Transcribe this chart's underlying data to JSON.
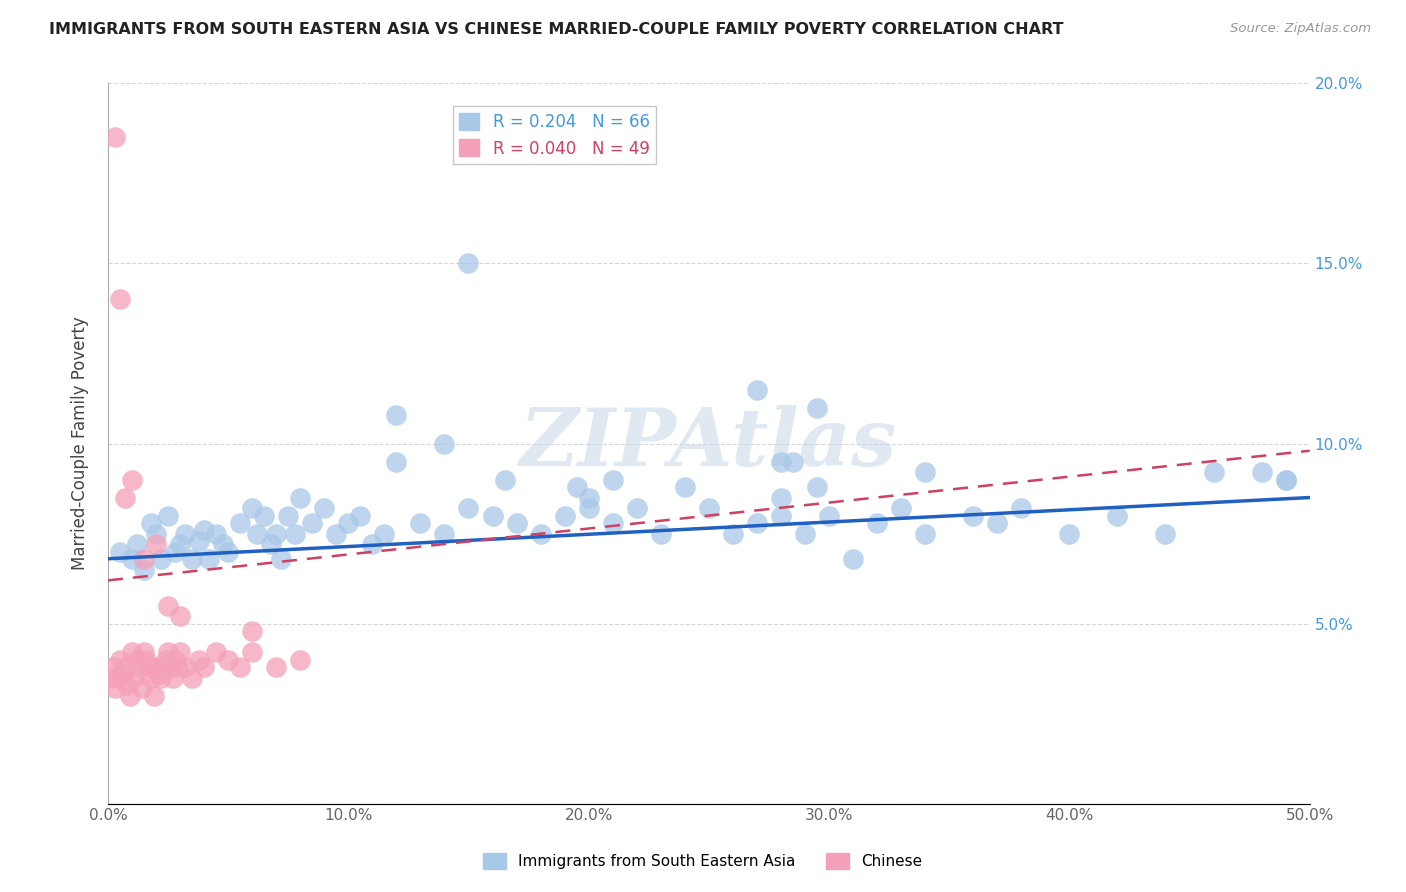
{
  "title": "IMMIGRANTS FROM SOUTH EASTERN ASIA VS CHINESE MARRIED-COUPLE FAMILY POVERTY CORRELATION CHART",
  "source": "Source: ZipAtlas.com",
  "ylabel": "Married-Couple Family Poverty",
  "xlim": [
    0,
    0.5
  ],
  "ylim": [
    0,
    0.2
  ],
  "xticks": [
    0.0,
    0.1,
    0.2,
    0.3,
    0.4,
    0.5
  ],
  "yticks": [
    0.0,
    0.05,
    0.1,
    0.15,
    0.2
  ],
  "xticklabels": [
    "0.0%",
    "10.0%",
    "20.0%",
    "30.0%",
    "40.0%",
    "50.0%"
  ],
  "yticklabels_right": [
    "",
    "5.0%",
    "10.0%",
    "15.0%",
    "20.0%"
  ],
  "blue_color": "#A8C8E8",
  "pink_color": "#F4A0B8",
  "blue_line_color": "#2060C0",
  "pink_line_color": "#D04060",
  "blue_R": 0.204,
  "blue_N": 66,
  "pink_R": 0.04,
  "pink_N": 49,
  "legend_label_blue": "Immigrants from South Eastern Asia",
  "legend_label_pink": "Chinese",
  "watermark": "ZIPAtlas",
  "blue_scatter_x": [
    0.005,
    0.01,
    0.012,
    0.015,
    0.018,
    0.02,
    0.022,
    0.025,
    0.028,
    0.03,
    0.032,
    0.035,
    0.038,
    0.04,
    0.042,
    0.045,
    0.048,
    0.05,
    0.055,
    0.06,
    0.062,
    0.065,
    0.068,
    0.07,
    0.072,
    0.075,
    0.078,
    0.08,
    0.085,
    0.09,
    0.095,
    0.1,
    0.105,
    0.11,
    0.115,
    0.12,
    0.13,
    0.14,
    0.15,
    0.16,
    0.17,
    0.18,
    0.19,
    0.2,
    0.21,
    0.22,
    0.23,
    0.24,
    0.25,
    0.26,
    0.27,
    0.28,
    0.29,
    0.3,
    0.31,
    0.32,
    0.33,
    0.34,
    0.36,
    0.37,
    0.38,
    0.4,
    0.42,
    0.44,
    0.46,
    0.49
  ],
  "blue_scatter_y": [
    0.07,
    0.068,
    0.072,
    0.065,
    0.078,
    0.075,
    0.068,
    0.08,
    0.07,
    0.072,
    0.075,
    0.068,
    0.073,
    0.076,
    0.068,
    0.075,
    0.072,
    0.07,
    0.078,
    0.082,
    0.075,
    0.08,
    0.072,
    0.075,
    0.068,
    0.08,
    0.075,
    0.085,
    0.078,
    0.082,
    0.075,
    0.078,
    0.08,
    0.072,
    0.075,
    0.095,
    0.078,
    0.075,
    0.082,
    0.08,
    0.078,
    0.075,
    0.08,
    0.085,
    0.078,
    0.082,
    0.075,
    0.088,
    0.082,
    0.075,
    0.078,
    0.08,
    0.075,
    0.08,
    0.068,
    0.078,
    0.082,
    0.075,
    0.08,
    0.078,
    0.082,
    0.075,
    0.08,
    0.075,
    0.092,
    0.09
  ],
  "blue_extra_x": [
    0.27,
    0.285,
    0.295,
    0.15,
    0.48,
    0.49,
    0.34,
    0.28,
    0.295,
    0.21,
    0.14,
    0.28,
    0.2,
    0.195,
    0.165,
    0.12
  ],
  "blue_extra_y": [
    0.115,
    0.095,
    0.11,
    0.15,
    0.092,
    0.09,
    0.092,
    0.085,
    0.088,
    0.09,
    0.1,
    0.095,
    0.082,
    0.088,
    0.09,
    0.108
  ],
  "pink_scatter_x": [
    0.001,
    0.002,
    0.003,
    0.004,
    0.005,
    0.006,
    0.007,
    0.008,
    0.009,
    0.01,
    0.011,
    0.012,
    0.013,
    0.014,
    0.015,
    0.016,
    0.017,
    0.018,
    0.019,
    0.02,
    0.021,
    0.022,
    0.023,
    0.024,
    0.025,
    0.026,
    0.027,
    0.028,
    0.029,
    0.03,
    0.032,
    0.035,
    0.038,
    0.04,
    0.045,
    0.05,
    0.055,
    0.06,
    0.07,
    0.08,
    0.003,
    0.005,
    0.007,
    0.01,
    0.015,
    0.02,
    0.025,
    0.03,
    0.06
  ],
  "pink_scatter_y": [
    0.035,
    0.038,
    0.032,
    0.035,
    0.04,
    0.036,
    0.038,
    0.033,
    0.03,
    0.042,
    0.035,
    0.04,
    0.038,
    0.032,
    0.042,
    0.04,
    0.038,
    0.035,
    0.03,
    0.038,
    0.036,
    0.035,
    0.038,
    0.04,
    0.042,
    0.038,
    0.035,
    0.04,
    0.038,
    0.042,
    0.038,
    0.035,
    0.04,
    0.038,
    0.042,
    0.04,
    0.038,
    0.042,
    0.038,
    0.04,
    0.185,
    0.14,
    0.085,
    0.09,
    0.068,
    0.072,
    0.055,
    0.052,
    0.048
  ],
  "blue_trend_x": [
    0.0,
    0.5
  ],
  "blue_trend_y": [
    0.068,
    0.085
  ],
  "pink_trend_x": [
    0.0,
    0.5
  ],
  "pink_trend_y": [
    0.062,
    0.098
  ],
  "grid_color": "#CCCCCC",
  "tick_color_x": "#666666",
  "tick_color_right": "#4499DD"
}
